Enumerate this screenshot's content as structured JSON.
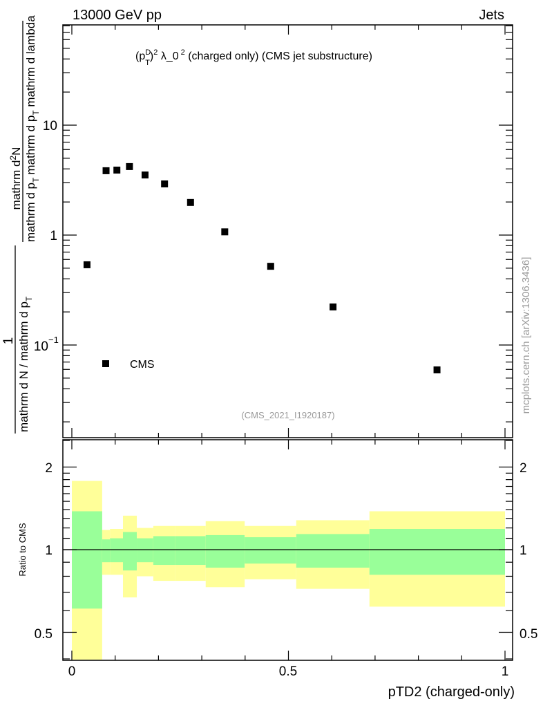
{
  "header": {
    "left": "13000 GeV pp",
    "right": "Jets"
  },
  "watermark": "mcplots.cern.ch [arXiv:1306.3436]",
  "analysis_id": "(CMS_2021_I1920187)",
  "colors": {
    "yellow": "#ffff99",
    "green": "#99ff99",
    "marker": "#000000",
    "grey": "#999999"
  },
  "chart_data": [
    {
      "type": "scatter",
      "title": "(p_T^D)^2 λ_0^2 (charged only) (CMS jet substructure)",
      "title_parts": {
        "open": "(p",
        "sub": "T",
        "sup": "D",
        "close": ")",
        "sq": "2",
        "lam": " λ_0",
        "sq2": "2",
        "rest": " (charged only) (CMS jet substructure)"
      },
      "ylabel": "1 / mathrm d N / mathrm d p_T mathrm d p_T mathrm d lambda · mathrm d²N",
      "ylabel_parts": {
        "num": "1",
        "den": "mathrm d N / mathrm d p",
        "den_sub": "T",
        "num2": "mathrm d",
        "num2_sup": "2",
        "num2_end": "N",
        "den2a": "mathrm d p",
        "den2a_sub": "T",
        "den2b": "mathrm d p",
        "den2b_sub": "T",
        "den2c": " mathrm d lambda"
      },
      "yscale": "log",
      "ylim": [
        0.0145,
        81
      ],
      "xlim": [
        -0.02,
        1.02
      ],
      "yticks": [
        {
          "v": 10,
          "label": "10"
        },
        {
          "v": 1,
          "label": "1"
        },
        {
          "v": 0.1,
          "label": "10",
          "sup": "−1"
        }
      ],
      "legend": {
        "label": "CMS",
        "placement": "bottom-left"
      },
      "series": [
        {
          "name": "CMS",
          "x": [
            0.035,
            0.079,
            0.104,
            0.133,
            0.169,
            0.214,
            0.274,
            0.353,
            0.459,
            0.603,
            0.843
          ],
          "y": [
            0.537,
            3.85,
            3.9,
            4.2,
            3.52,
            2.92,
            1.98,
            1.07,
            0.52,
            0.222,
            0.0594
          ]
        }
      ]
    },
    {
      "type": "area",
      "ylabel": "Ratio to CMS",
      "xlabel": "pTD2 (charged-only)",
      "yscale": "log",
      "ylim": [
        0.396,
        2.51
      ],
      "yticks": [
        {
          "v": 2,
          "label": "2"
        },
        {
          "v": 1,
          "label": "1"
        },
        {
          "v": 0.5,
          "label": "0.5"
        }
      ],
      "xticks": [
        {
          "v": 0,
          "label": "0"
        },
        {
          "v": 0.5,
          "label": "0.5"
        },
        {
          "v": 1,
          "label": "1"
        }
      ],
      "bin_edges": [
        0,
        0.07,
        0.088,
        0.118,
        0.15,
        0.188,
        0.239,
        0.309,
        0.399,
        0.518,
        0.687,
        1.0
      ],
      "yellow_band": {
        "hi": [
          1.78,
          1.18,
          1.19,
          1.33,
          1.2,
          1.22,
          1.22,
          1.27,
          1.22,
          1.28,
          1.38
        ],
        "lo": [
          0.35,
          0.81,
          0.81,
          0.67,
          0.8,
          0.77,
          0.77,
          0.73,
          0.78,
          0.72,
          0.62
        ]
      },
      "green_band": {
        "hi": [
          1.38,
          1.09,
          1.1,
          1.16,
          1.1,
          1.12,
          1.12,
          1.13,
          1.11,
          1.14,
          1.19
        ],
        "lo": [
          0.61,
          0.9,
          0.9,
          0.84,
          0.9,
          0.88,
          0.88,
          0.86,
          0.89,
          0.86,
          0.81
        ]
      },
      "reference_line": 1
    }
  ]
}
